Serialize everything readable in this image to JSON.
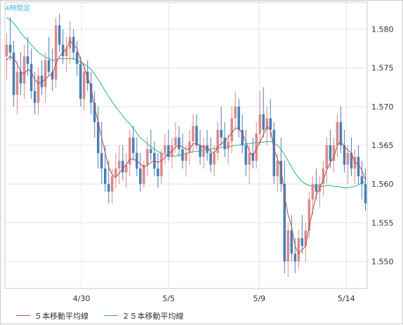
{
  "chart_data": {
    "type": "candlestick",
    "timeframe_label": "4時間足",
    "x_ticks": [
      "4/30",
      "5/5",
      "5/9",
      "5/14"
    ],
    "y_ticks": [
      "1.550",
      "1.555",
      "1.560",
      "1.565",
      "1.570",
      "1.575",
      "1.580"
    ],
    "ylim": [
      1.5465,
      1.5835
    ],
    "grid": true,
    "candle_colors": {
      "up": "#d98a8a",
      "down": "#4a7fb5"
    },
    "legend": [
      {
        "name": "５本移動平均線",
        "color": "#b44c4c"
      },
      {
        "name": "２５本移動平均線",
        "color": "#2bb08a"
      }
    ],
    "ohlc": [
      [
        1.5765,
        1.5795,
        1.5735,
        1.578
      ],
      [
        1.578,
        1.5815,
        1.576,
        1.577
      ],
      [
        1.577,
        1.5785,
        1.57,
        1.5715
      ],
      [
        1.5715,
        1.576,
        1.569,
        1.5745
      ],
      [
        1.5745,
        1.577,
        1.5715,
        1.573
      ],
      [
        1.573,
        1.578,
        1.571,
        1.5765
      ],
      [
        1.5765,
        1.579,
        1.574,
        1.5755
      ],
      [
        1.5755,
        1.5775,
        1.571,
        1.572
      ],
      [
        1.572,
        1.5745,
        1.569,
        1.5705
      ],
      [
        1.5705,
        1.575,
        1.569,
        1.574
      ],
      [
        1.574,
        1.576,
        1.5715,
        1.5725
      ],
      [
        1.5725,
        1.577,
        1.5705,
        1.576
      ],
      [
        1.576,
        1.579,
        1.574,
        1.5745
      ],
      [
        1.5745,
        1.5775,
        1.572,
        1.5735
      ],
      [
        1.5735,
        1.5815,
        1.5725,
        1.5805
      ],
      [
        1.5805,
        1.582,
        1.577,
        1.578
      ],
      [
        1.578,
        1.58,
        1.5755,
        1.5765
      ],
      [
        1.5765,
        1.579,
        1.5745,
        1.5775
      ],
      [
        1.5775,
        1.581,
        1.5755,
        1.579
      ],
      [
        1.579,
        1.58,
        1.576,
        1.577
      ],
      [
        1.577,
        1.5785,
        1.574,
        1.5755
      ],
      [
        1.5755,
        1.5765,
        1.57,
        1.571
      ],
      [
        1.571,
        1.5755,
        1.5695,
        1.5745
      ],
      [
        1.5745,
        1.576,
        1.572,
        1.573
      ],
      [
        1.573,
        1.5745,
        1.569,
        1.5705
      ],
      [
        1.5705,
        1.572,
        1.566,
        1.568
      ],
      [
        1.568,
        1.57,
        1.562,
        1.564
      ],
      [
        1.564,
        1.568,
        1.56,
        1.562
      ],
      [
        1.562,
        1.565,
        1.559,
        1.56
      ],
      [
        1.56,
        1.563,
        1.5575,
        1.559
      ],
      [
        1.559,
        1.562,
        1.5575,
        1.561
      ],
      [
        1.561,
        1.564,
        1.5595,
        1.562
      ],
      [
        1.562,
        1.565,
        1.56,
        1.563
      ],
      [
        1.563,
        1.565,
        1.5605,
        1.5615
      ],
      [
        1.5615,
        1.564,
        1.5595,
        1.5625
      ],
      [
        1.5625,
        1.567,
        1.561,
        1.566
      ],
      [
        1.566,
        1.5675,
        1.563,
        1.564
      ],
      [
        1.564,
        1.566,
        1.561,
        1.562
      ],
      [
        1.562,
        1.564,
        1.559,
        1.56
      ],
      [
        1.56,
        1.563,
        1.5595,
        1.5625
      ],
      [
        1.5625,
        1.566,
        1.561,
        1.5645
      ],
      [
        1.5645,
        1.567,
        1.563,
        1.564
      ],
      [
        1.564,
        1.5655,
        1.561,
        1.562
      ],
      [
        1.562,
        1.564,
        1.5595,
        1.561
      ],
      [
        1.561,
        1.5645,
        1.56,
        1.564
      ],
      [
        1.564,
        1.5665,
        1.5625,
        1.565
      ],
      [
        1.565,
        1.567,
        1.563,
        1.5635
      ],
      [
        1.5635,
        1.566,
        1.562,
        1.565
      ],
      [
        1.565,
        1.568,
        1.564,
        1.566
      ],
      [
        1.566,
        1.5675,
        1.5635,
        1.5645
      ],
      [
        1.5645,
        1.5665,
        1.562,
        1.563
      ],
      [
        1.563,
        1.565,
        1.561,
        1.564
      ],
      [
        1.564,
        1.567,
        1.5625,
        1.5655
      ],
      [
        1.5655,
        1.569,
        1.564,
        1.5675
      ],
      [
        1.5675,
        1.569,
        1.5645,
        1.565
      ],
      [
        1.565,
        1.567,
        1.5625,
        1.5635
      ],
      [
        1.5635,
        1.566,
        1.562,
        1.565
      ],
      [
        1.565,
        1.567,
        1.563,
        1.564
      ],
      [
        1.564,
        1.566,
        1.5615,
        1.5625
      ],
      [
        1.5625,
        1.565,
        1.561,
        1.564
      ],
      [
        1.564,
        1.568,
        1.563,
        1.567
      ],
      [
        1.567,
        1.57,
        1.565,
        1.566
      ],
      [
        1.566,
        1.568,
        1.5635,
        1.5645
      ],
      [
        1.5645,
        1.5665,
        1.5625,
        1.5655
      ],
      [
        1.5655,
        1.57,
        1.564,
        1.5685
      ],
      [
        1.5685,
        1.572,
        1.567,
        1.57
      ],
      [
        1.57,
        1.571,
        1.566,
        1.567
      ],
      [
        1.567,
        1.569,
        1.564,
        1.565
      ],
      [
        1.565,
        1.567,
        1.561,
        1.5625
      ],
      [
        1.5625,
        1.565,
        1.56,
        1.564
      ],
      [
        1.564,
        1.566,
        1.562,
        1.563
      ],
      [
        1.563,
        1.568,
        1.562,
        1.5665
      ],
      [
        1.5665,
        1.572,
        1.565,
        1.569
      ],
      [
        1.569,
        1.5725,
        1.566,
        1.567
      ],
      [
        1.567,
        1.57,
        1.565,
        1.5685
      ],
      [
        1.5685,
        1.571,
        1.566,
        1.567
      ],
      [
        1.567,
        1.568,
        1.56,
        1.561
      ],
      [
        1.561,
        1.564,
        1.559,
        1.563
      ],
      [
        1.563,
        1.566,
        1.559,
        1.56
      ],
      [
        1.56,
        1.563,
        1.5485,
        1.55
      ],
      [
        1.55,
        1.555,
        1.548,
        1.554
      ],
      [
        1.554,
        1.556,
        1.55,
        1.551
      ],
      [
        1.551,
        1.553,
        1.5485,
        1.55
      ],
      [
        1.55,
        1.554,
        1.549,
        1.553
      ],
      [
        1.553,
        1.556,
        1.551,
        1.552
      ],
      [
        1.552,
        1.555,
        1.55,
        1.554
      ],
      [
        1.554,
        1.559,
        1.553,
        1.558
      ],
      [
        1.558,
        1.561,
        1.556,
        1.56
      ],
      [
        1.56,
        1.562,
        1.558,
        1.559
      ],
      [
        1.559,
        1.561,
        1.557,
        1.56
      ],
      [
        1.56,
        1.563,
        1.5585,
        1.562
      ],
      [
        1.562,
        1.566,
        1.56,
        1.565
      ],
      [
        1.565,
        1.567,
        1.562,
        1.563
      ],
      [
        1.563,
        1.566,
        1.5615,
        1.565
      ],
      [
        1.565,
        1.569,
        1.5635,
        1.568
      ],
      [
        1.568,
        1.57,
        1.564,
        1.565
      ],
      [
        1.565,
        1.567,
        1.5615,
        1.5625
      ],
      [
        1.5625,
        1.565,
        1.56,
        1.564
      ],
      [
        1.564,
        1.566,
        1.561,
        1.562
      ],
      [
        1.562,
        1.5645,
        1.56,
        1.5635
      ],
      [
        1.5635,
        1.565,
        1.56,
        1.561
      ],
      [
        1.561,
        1.563,
        1.558,
        1.56
      ],
      [
        1.56,
        1.562,
        1.5565,
        1.5575
      ]
    ],
    "ma5": [
      1.576,
      1.5765,
      1.5762,
      1.5755,
      1.5745,
      1.5742,
      1.5748,
      1.5745,
      1.5735,
      1.573,
      1.5732,
      1.5735,
      1.574,
      1.5742,
      1.5755,
      1.5765,
      1.577,
      1.5775,
      1.5785,
      1.578,
      1.5775,
      1.576,
      1.5752,
      1.5738,
      1.5725,
      1.57,
      1.568,
      1.566,
      1.564,
      1.5622,
      1.5612,
      1.5608,
      1.5614,
      1.562,
      1.5625,
      1.5632,
      1.5632,
      1.563,
      1.5626,
      1.5622,
      1.5624,
      1.5628,
      1.563,
      1.5628,
      1.563,
      1.5634,
      1.564,
      1.5642,
      1.5648,
      1.565,
      1.5648,
      1.5645,
      1.5645,
      1.5652,
      1.5652,
      1.565,
      1.5648,
      1.5646,
      1.5642,
      1.564,
      1.5648,
      1.5652,
      1.5655,
      1.566,
      1.5666,
      1.5672,
      1.5672,
      1.5665,
      1.5655,
      1.5642,
      1.5636,
      1.5646,
      1.5654,
      1.5664,
      1.5674,
      1.567,
      1.5645,
      1.5632,
      1.5622,
      1.5585,
      1.556,
      1.5545,
      1.552,
      1.551,
      1.5515,
      1.552,
      1.5545,
      1.5565,
      1.5585,
      1.5595,
      1.5605,
      1.5618,
      1.5628,
      1.5634,
      1.565,
      1.5655,
      1.5648,
      1.5644,
      1.564,
      1.5628,
      1.5625,
      1.5618,
      1.5605
    ],
    "ma25": [
      1.5815,
      1.5812,
      1.5808,
      1.5802,
      1.5795,
      1.579,
      1.5785,
      1.578,
      1.5775,
      1.577,
      1.5767,
      1.5764,
      1.5762,
      1.576,
      1.576,
      1.5762,
      1.5762,
      1.5762,
      1.5762,
      1.5762,
      1.576,
      1.5757,
      1.5755,
      1.5752,
      1.5748,
      1.5742,
      1.5735,
      1.5728,
      1.572,
      1.5713,
      1.5706,
      1.57,
      1.5694,
      1.5688,
      1.5682,
      1.5678,
      1.5672,
      1.5666,
      1.566,
      1.5656,
      1.5652,
      1.5648,
      1.5645,
      1.5642,
      1.564,
      1.5638,
      1.5637,
      1.5636,
      1.5636,
      1.5637,
      1.5638,
      1.564,
      1.564,
      1.5642,
      1.5642,
      1.5643,
      1.5644,
      1.5645,
      1.5645,
      1.5646,
      1.5646,
      1.5647,
      1.5648,
      1.5648,
      1.5649,
      1.565,
      1.565,
      1.5651,
      1.5652,
      1.5652,
      1.5653,
      1.5653,
      1.5654,
      1.5654,
      1.5655,
      1.5655,
      1.5653,
      1.565,
      1.5645,
      1.5638,
      1.563,
      1.5622,
      1.5614,
      1.5608,
      1.5603,
      1.56,
      1.5598,
      1.5597,
      1.5597,
      1.5597,
      1.5597,
      1.5598,
      1.5598,
      1.5597,
      1.5597,
      1.5596,
      1.5595,
      1.5595,
      1.5596,
      1.5597,
      1.5599,
      1.5601,
      1.5603
    ]
  }
}
